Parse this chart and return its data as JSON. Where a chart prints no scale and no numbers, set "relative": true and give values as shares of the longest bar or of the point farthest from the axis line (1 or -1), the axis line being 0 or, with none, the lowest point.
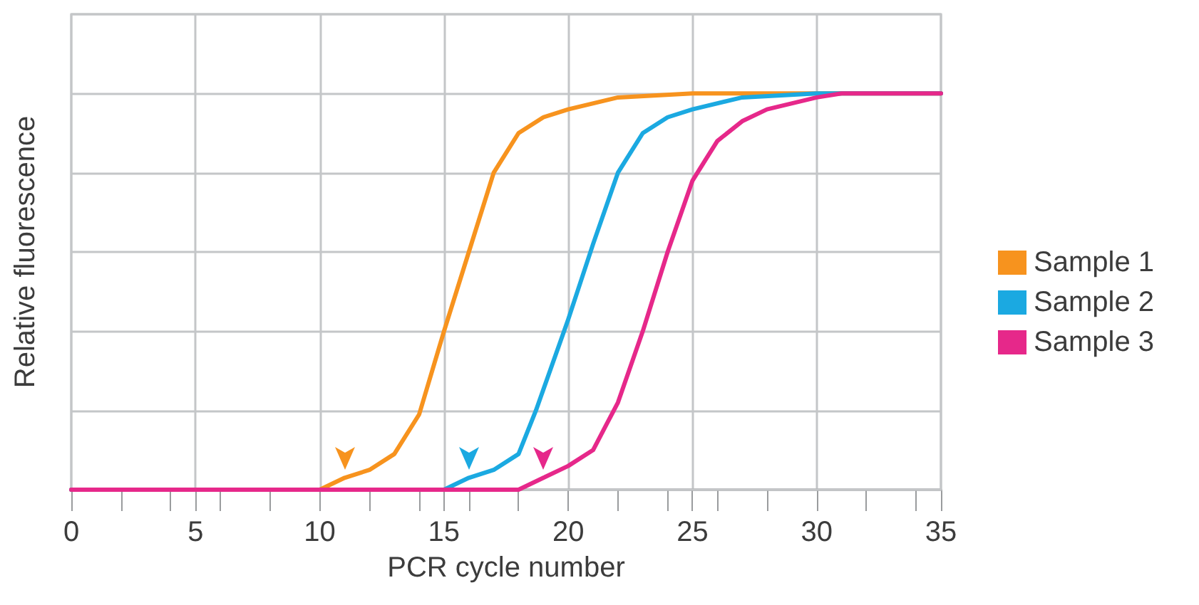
{
  "chart_data": {
    "type": "line",
    "xlabel": "PCR cycle number",
    "ylabel": "Relative fluorescence",
    "relative": true,
    "xlim": [
      0,
      35
    ],
    "xticks": [
      0,
      5,
      10,
      15,
      20,
      25,
      30,
      35
    ],
    "grid": true,
    "legend": "right",
    "marker": "none",
    "line_style": "solid",
    "series": [
      {
        "name": "Sample 1",
        "color": "#f7931e",
        "x": [
          0,
          10,
          11,
          12,
          13,
          14,
          15,
          16,
          17,
          18,
          19,
          20,
          22,
          25,
          35
        ],
        "values": [
          0,
          0,
          0.03,
          0.05,
          0.09,
          0.19,
          0.4,
          0.6,
          0.8,
          0.9,
          0.94,
          0.96,
          0.99,
          1,
          1
        ]
      },
      {
        "name": "Sample 2",
        "color": "#1ba9e1",
        "x": [
          0,
          15,
          16,
          17,
          18,
          18.7,
          20,
          21,
          22,
          23,
          24,
          25,
          27,
          30,
          35
        ],
        "values": [
          0,
          0,
          0.03,
          0.05,
          0.09,
          0.2,
          0.43,
          0.62,
          0.8,
          0.9,
          0.94,
          0.96,
          0.99,
          1,
          1
        ]
      },
      {
        "name": "Sample 3",
        "color": "#e6288a",
        "x": [
          0,
          18,
          19,
          20,
          21,
          21.5,
          22,
          23,
          24,
          25,
          25.5,
          26,
          27,
          28,
          30,
          31,
          35
        ],
        "values": [
          0,
          0,
          0.03,
          0.06,
          0.1,
          0.16,
          0.22,
          0.4,
          0.6,
          0.78,
          0.83,
          0.88,
          0.93,
          0.96,
          0.99,
          1,
          1
        ]
      }
    ]
  }
}
